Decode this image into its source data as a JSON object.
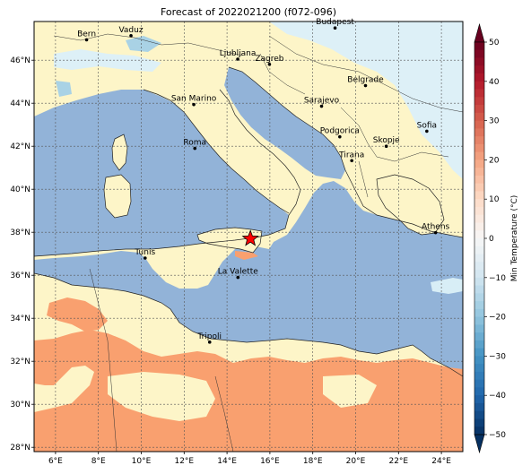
{
  "title": "Forecast of 2022021200 (f072-096)",
  "colorbar": {
    "label": "Min Temperature (°C)",
    "ticks": [
      "50",
      "40",
      "30",
      "20",
      "10",
      "0",
      "−10",
      "−20",
      "−30",
      "−40",
      "−50"
    ],
    "colors": [
      "#67001f",
      "#b2182b",
      "#d6604d",
      "#f4a582",
      "#fddbc7",
      "#f7f7f7",
      "#d1e5f0",
      "#92c5de",
      "#4393c3",
      "#2166ac",
      "#053061"
    ]
  },
  "axes": {
    "lon_ticks": [
      "6°E",
      "8°E",
      "10°E",
      "12°E",
      "14°E",
      "16°E",
      "18°E",
      "20°E",
      "22°E",
      "24°E"
    ],
    "lat_ticks": [
      "46°N",
      "44°N",
      "42°N",
      "40°N",
      "38°N",
      "36°N",
      "34°N",
      "32°N",
      "30°N",
      "28°N"
    ],
    "lon_range": [
      5,
      25
    ],
    "lat_range": [
      27.8,
      47.8
    ]
  },
  "cities": [
    {
      "name": "Bern",
      "lon": 7.45,
      "lat": 46.95
    },
    {
      "name": "Vaduz",
      "lon": 9.52,
      "lat": 47.14
    },
    {
      "name": "Budapest",
      "lon": 19.04,
      "lat": 47.5
    },
    {
      "name": "Ljubljana",
      "lon": 14.5,
      "lat": 46.05
    },
    {
      "name": "Zagreb",
      "lon": 15.98,
      "lat": 45.81
    },
    {
      "name": "Belgrade",
      "lon": 20.46,
      "lat": 44.82
    },
    {
      "name": "San Marino",
      "lon": 12.45,
      "lat": 43.94
    },
    {
      "name": "Sarajevo",
      "lon": 18.41,
      "lat": 43.86
    },
    {
      "name": "Sofia",
      "lon": 23.32,
      "lat": 42.7
    },
    {
      "name": "Podgorica",
      "lon": 19.26,
      "lat": 42.44
    },
    {
      "name": "Skopje",
      "lon": 21.43,
      "lat": 42.0
    },
    {
      "name": "Roma",
      "lon": 12.5,
      "lat": 41.9
    },
    {
      "name": "Tirana",
      "lon": 19.82,
      "lat": 41.33
    },
    {
      "name": "Athens",
      "lon": 23.73,
      "lat": 37.98
    },
    {
      "name": "Tunis",
      "lon": 10.18,
      "lat": 36.8
    },
    {
      "name": "La Valette",
      "lon": 14.51,
      "lat": 35.9
    },
    {
      "name": "Tripoli",
      "lon": 13.19,
      "lat": 32.89
    }
  ],
  "marker": {
    "lon": 15.09,
    "lat": 37.7,
    "color": "#ff0000"
  },
  "surface_colors": {
    "sea": "#92b3d8",
    "land_mild": "#fdf5c8",
    "land_warm": "#f9a06f",
    "cold": "#d8eef6"
  }
}
